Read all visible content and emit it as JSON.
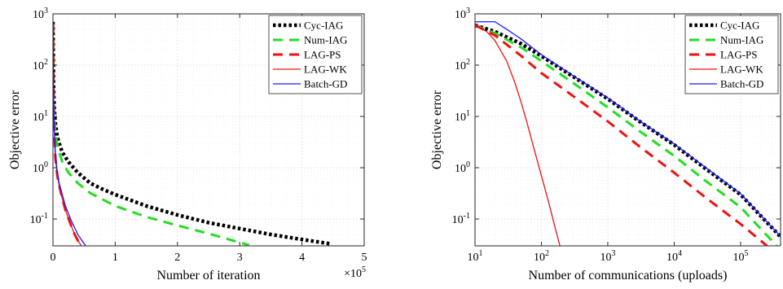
{
  "chart_data": [
    {
      "type": "line",
      "xscale": "linear",
      "yscale": "log",
      "xlabel": "Number of iteration",
      "ylabel": "Objective error",
      "xlim": [
        0,
        5
      ],
      "ylim": [
        0.03,
        1000
      ],
      "x_multiplier_label": "×10",
      "x_multiplier_exp": "5",
      "x_ticks": [
        0,
        1,
        2,
        3,
        4,
        5
      ],
      "x_tick_labels": [
        "0",
        "1",
        "2",
        "3",
        "4",
        "5"
      ],
      "y_ticks": [
        0.1,
        1,
        10,
        100,
        1000
      ],
      "y_tick_labels": [
        {
          "base": "10",
          "exp": "-1"
        },
        {
          "base": "10",
          "exp": "0"
        },
        {
          "base": "10",
          "exp": "1"
        },
        {
          "base": "10",
          "exp": "2"
        },
        {
          "base": "10",
          "exp": "3"
        }
      ],
      "grid": true,
      "legend_position": "top-right",
      "series": [
        {
          "name": "Cyc-IAG",
          "color": "#000000",
          "style": "dotted-thick",
          "x": [
            0,
            0.005,
            0.01,
            0.02,
            0.04,
            0.07,
            0.1,
            0.15,
            0.25,
            0.4,
            0.6,
            0.8,
            1.0,
            1.5,
            2.0,
            2.5,
            3.0,
            3.5,
            4.0,
            4.45
          ],
          "y": [
            700,
            150,
            40,
            15,
            7,
            4,
            3,
            2,
            1.3,
            0.8,
            0.5,
            0.38,
            0.3,
            0.18,
            0.12,
            0.085,
            0.065,
            0.05,
            0.04,
            0.033
          ]
        },
        {
          "name": "Num-IAG",
          "color": "#22dd22",
          "style": "dashed",
          "x": [
            0,
            0.005,
            0.01,
            0.02,
            0.04,
            0.07,
            0.1,
            0.15,
            0.25,
            0.4,
            0.6,
            0.8,
            1.0,
            1.5,
            2.0,
            2.5,
            3.0,
            3.15
          ],
          "y": [
            650,
            140,
            30,
            10,
            4.5,
            2.8,
            2,
            1.3,
            0.8,
            0.5,
            0.32,
            0.24,
            0.18,
            0.11,
            0.075,
            0.052,
            0.035,
            0.031
          ]
        },
        {
          "name": "LAG-PS",
          "color": "#ee1111",
          "style": "dashed",
          "x": [
            0,
            0.005,
            0.01,
            0.02,
            0.04,
            0.07,
            0.1,
            0.15,
            0.2,
            0.3,
            0.35,
            0.4,
            0.45
          ],
          "y": [
            650,
            100,
            20,
            5,
            1.5,
            0.7,
            0.45,
            0.25,
            0.15,
            0.07,
            0.05,
            0.038,
            0.031
          ]
        },
        {
          "name": "LAG-WK",
          "color": "#ee1111",
          "style": "solid",
          "x": [
            0,
            0.005,
            0.01,
            0.02,
            0.04,
            0.07,
            0.1,
            0.15,
            0.2,
            0.3,
            0.35,
            0.4,
            0.45
          ],
          "y": [
            650,
            100,
            20,
            5,
            1.5,
            0.7,
            0.45,
            0.25,
            0.15,
            0.07,
            0.05,
            0.038,
            0.031
          ]
        },
        {
          "name": "Batch-GD",
          "color": "#1a1aff",
          "style": "solid",
          "x": [
            0,
            0.005,
            0.01,
            0.02,
            0.04,
            0.07,
            0.1,
            0.15,
            0.2,
            0.3,
            0.4,
            0.5,
            0.52
          ],
          "y": [
            700,
            110,
            22,
            6,
            1.8,
            0.8,
            0.5,
            0.3,
            0.18,
            0.09,
            0.05,
            0.033,
            0.031
          ]
        }
      ],
      "legend": [
        "Cyc-IAG",
        "Num-IAG",
        "LAG-PS",
        "LAG-WK",
        "Batch-GD"
      ]
    },
    {
      "type": "line",
      "xscale": "log",
      "yscale": "log",
      "xlabel": "Number of communications (uploads)",
      "ylabel": "Objective error",
      "xlim": [
        10,
        400000
      ],
      "ylim": [
        0.03,
        1000
      ],
      "x_ticks": [
        10,
        100,
        1000,
        10000,
        100000
      ],
      "x_tick_labels": [
        {
          "base": "10",
          "exp": "1"
        },
        {
          "base": "10",
          "exp": "2"
        },
        {
          "base": "10",
          "exp": "3"
        },
        {
          "base": "10",
          "exp": "4"
        },
        {
          "base": "10",
          "exp": "5"
        }
      ],
      "y_ticks": [
        0.1,
        1,
        10,
        100,
        1000
      ],
      "y_tick_labels": [
        {
          "base": "10",
          "exp": "-1"
        },
        {
          "base": "10",
          "exp": "0"
        },
        {
          "base": "10",
          "exp": "1"
        },
        {
          "base": "10",
          "exp": "2"
        },
        {
          "base": "10",
          "exp": "3"
        }
      ],
      "grid": true,
      "legend_position": "top-right",
      "series": [
        {
          "name": "Cyc-IAG",
          "color": "#000000",
          "style": "dotted-thick",
          "x": [
            10,
            20,
            50,
            100,
            300,
            1000,
            3000,
            10000,
            30000,
            100000,
            400000
          ],
          "y": [
            600,
            450,
            260,
            150,
            60,
            22,
            8,
            2.8,
            0.95,
            0.3,
            0.045
          ]
        },
        {
          "name": "Num-IAG",
          "color": "#22dd22",
          "style": "dashed",
          "x": [
            10,
            20,
            50,
            100,
            300,
            1000,
            3000,
            10000,
            30000,
            100000,
            350000
          ],
          "y": [
            600,
            420,
            220,
            120,
            45,
            15,
            5.2,
            1.7,
            0.55,
            0.17,
            0.03
          ]
        },
        {
          "name": "LAG-PS",
          "color": "#ee1111",
          "style": "dashed",
          "x": [
            10,
            20,
            50,
            100,
            300,
            1000,
            3000,
            10000,
            30000,
            100000,
            250000
          ],
          "y": [
            600,
            380,
            150,
            70,
            25,
            8,
            2.6,
            0.8,
            0.26,
            0.08,
            0.03
          ]
        },
        {
          "name": "LAG-WK",
          "color": "#ee1111",
          "style": "solid",
          "x": [
            10,
            15,
            20,
            30,
            40,
            50,
            60,
            80,
            100,
            130,
            160,
            190
          ],
          "y": [
            600,
            450,
            300,
            120,
            45,
            18,
            8,
            2,
            0.7,
            0.2,
            0.07,
            0.03
          ]
        },
        {
          "name": "Batch-GD",
          "color": "#1a1aff",
          "style": "solid",
          "x": [
            10,
            20,
            30,
            50,
            100,
            300,
            1000,
            3000,
            10000,
            30000,
            100000,
            400000
          ],
          "y": [
            700,
            700,
            500,
            320,
            160,
            62,
            23,
            8.2,
            2.9,
            1.0,
            0.31,
            0.046
          ]
        }
      ],
      "legend": [
        "Cyc-IAG",
        "Num-IAG",
        "LAG-PS",
        "LAG-WK",
        "Batch-GD"
      ]
    }
  ]
}
